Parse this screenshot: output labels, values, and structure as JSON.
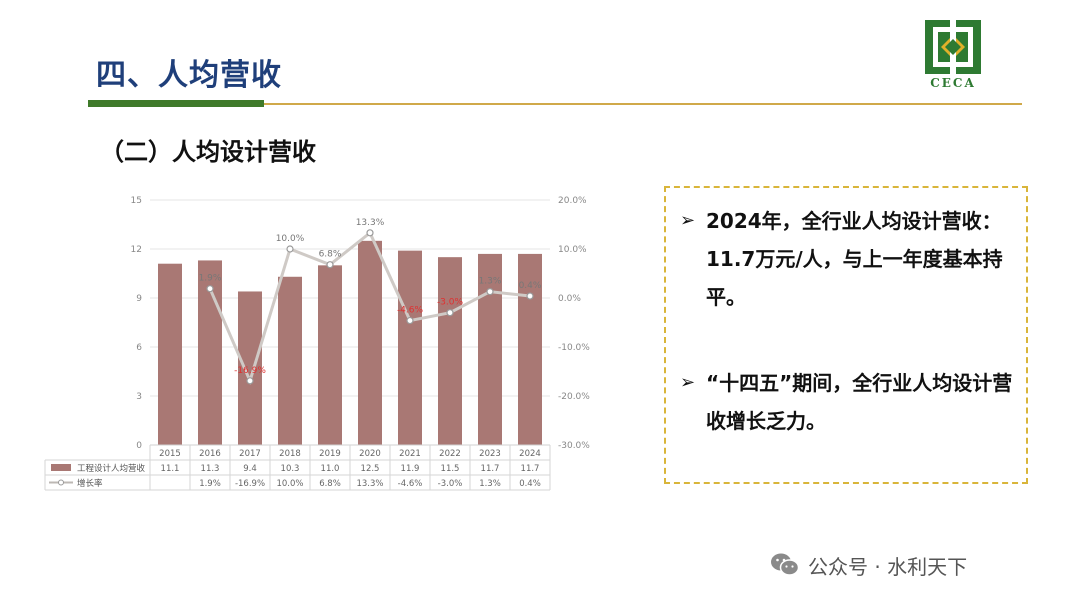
{
  "header": {
    "title": "四、人均营收",
    "logo_text": "CECA"
  },
  "subtitle": "（二）人均设计营收",
  "chart_data": {
    "type": "bar",
    "categories": [
      "2015",
      "2016",
      "2017",
      "2018",
      "2019",
      "2020",
      "2021",
      "2022",
      "2023",
      "2024"
    ],
    "series": [
      {
        "name": "工程设计人均营收",
        "type": "bar",
        "axis": "left",
        "values": [
          11.1,
          11.3,
          9.4,
          10.3,
          11.0,
          12.5,
          11.9,
          11.5,
          11.7,
          11.7
        ],
        "labels": [
          "11.1",
          "11.3",
          "9.4",
          "10.3",
          "11.0",
          "12.5",
          "11.9",
          "11.5",
          "11.7",
          "11.7"
        ],
        "color": "#a97874"
      },
      {
        "name": "增长率",
        "type": "line",
        "axis": "right",
        "values": [
          null,
          1.9,
          -16.9,
          10.0,
          6.8,
          13.3,
          -4.6,
          -3.0,
          1.3,
          0.4
        ],
        "labels": [
          "",
          "1.9%",
          "-16.9%",
          "10.0%",
          "6.8%",
          "13.3%",
          "-4.6%",
          "-3.0%",
          "1.3%",
          "0.4%"
        ],
        "color": "#cfcac6"
      }
    ],
    "y_left": {
      "ticks": [
        "0",
        "3",
        "6",
        "9",
        "12",
        "15"
      ],
      "min": 0,
      "max": 15
    },
    "y_right": {
      "ticks": [
        "-30.0%",
        "-20.0%",
        "-10.0%",
        "0.0%",
        "10.0%",
        "20.0%"
      ],
      "min": -30,
      "max": 20
    },
    "data_labels_red": [
      false,
      false,
      true,
      false,
      false,
      false,
      true,
      true,
      false,
      false
    ],
    "grid": true,
    "legend": "data-table"
  },
  "textbox": {
    "bullets": [
      "2024年，全行业人均设计营收：11.7万元/人，与上一年度基本持平。",
      "“十四五”期间，全行业人均设计营收增长乏力。"
    ],
    "arrow": "➢",
    "border_color": "#d9b53a"
  },
  "watermark": {
    "text": "公众号 · 水利天下",
    "icon": "wechat-icon"
  }
}
